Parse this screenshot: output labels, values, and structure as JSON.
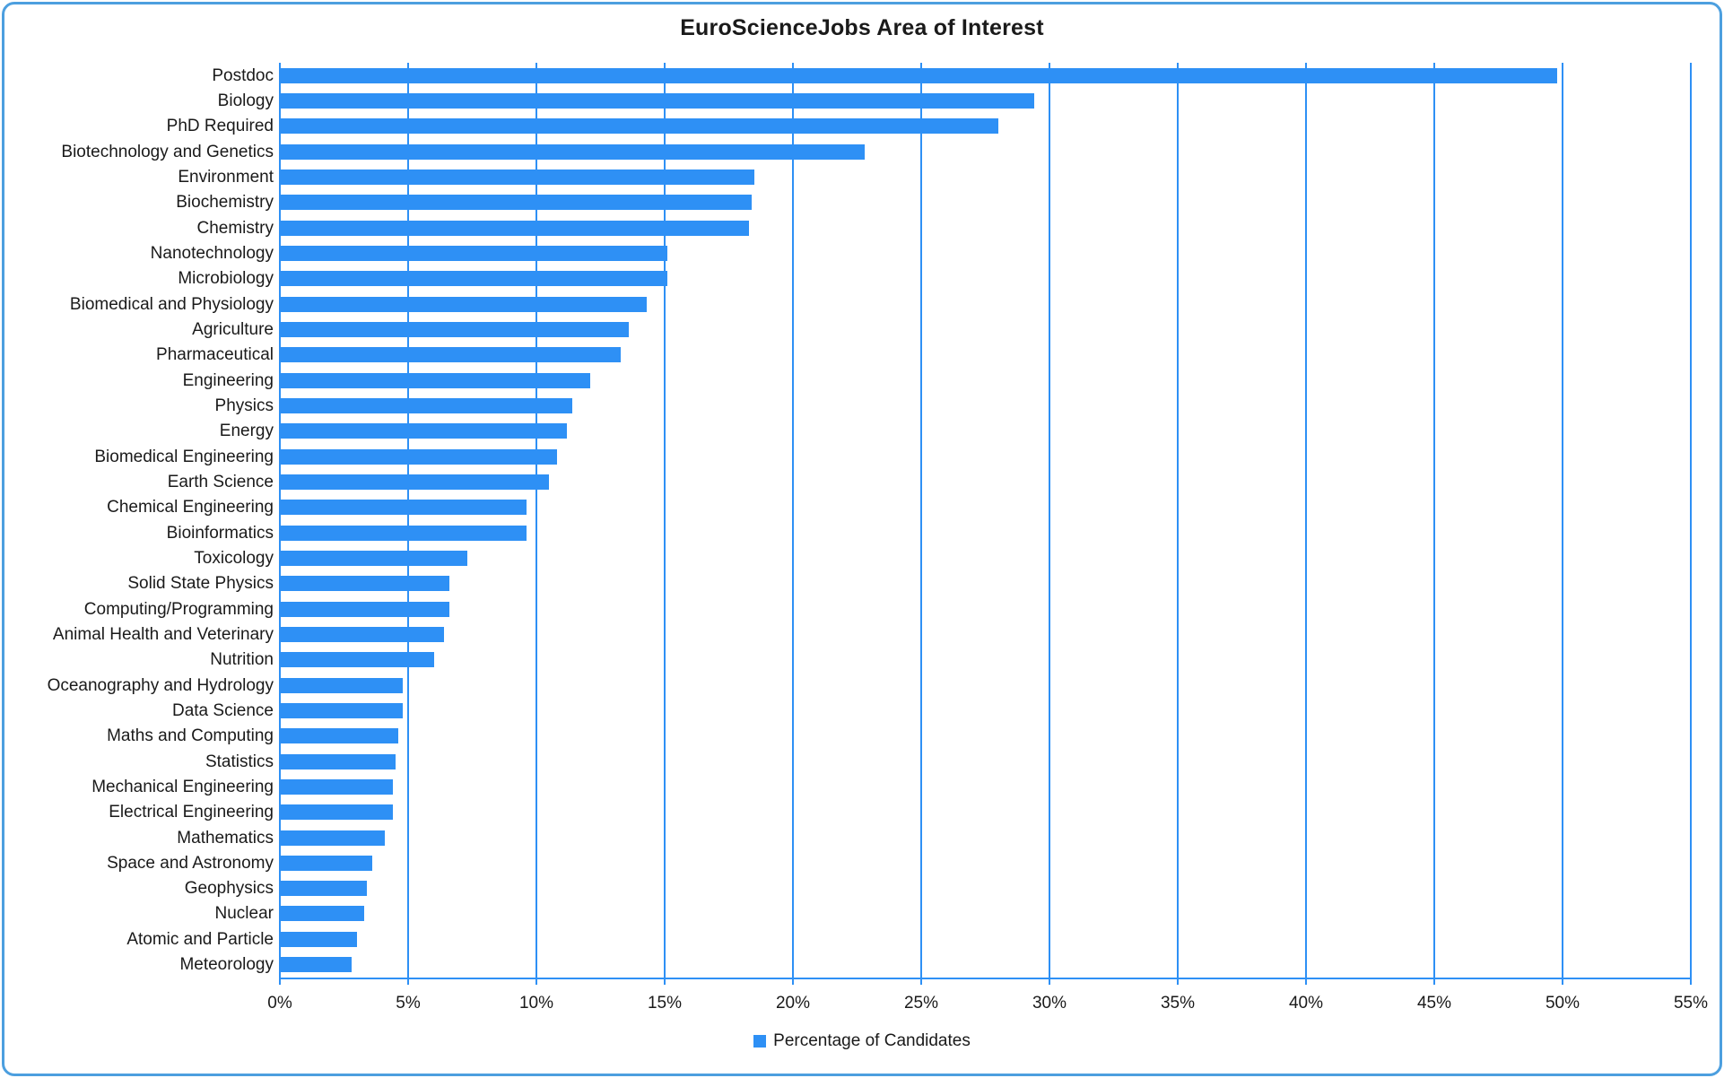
{
  "chart": {
    "title": "EuroScienceJobs Area of Interest",
    "legend_label": "Percentage of Candidates",
    "colors": {
      "bar": "#2E90F5",
      "gridline": "#2E90F5",
      "axis": "#2E90F5",
      "frame_border": "#4C9FDF",
      "text": "#1a1a1a",
      "background": "#ffffff"
    }
  },
  "chart_data": {
    "type": "bar",
    "orientation": "horizontal",
    "title": "EuroScienceJobs Area of Interest",
    "xlabel": "",
    "ylabel": "",
    "unit": "%",
    "xlim": [
      0,
      55
    ],
    "grid": true,
    "legend_entries": [
      "Percentage of Candidates"
    ],
    "legend_position": "bottom",
    "x_tick_labels": [
      "0%",
      "5%",
      "10%",
      "15%",
      "20%",
      "25%",
      "30%",
      "35%",
      "40%",
      "45%",
      "50%",
      "55%"
    ],
    "x_tick_values": [
      0,
      5,
      10,
      15,
      20,
      25,
      30,
      35,
      40,
      45,
      50,
      55
    ],
    "categories": [
      "Postdoc",
      "Biology",
      "PhD Required",
      "Biotechnology and Genetics",
      "Environment",
      "Biochemistry",
      "Chemistry",
      "Nanotechnology",
      "Microbiology",
      "Biomedical and Physiology",
      "Agriculture",
      "Pharmaceutical",
      "Engineering",
      "Physics",
      "Energy",
      "Biomedical Engineering",
      "Earth Science",
      "Chemical Engineering",
      "Bioinformatics",
      "Toxicology",
      "Solid State Physics",
      "Computing/Programming",
      "Animal Health and Veterinary",
      "Nutrition",
      "Oceanography and Hydrology",
      "Data Science",
      "Maths and Computing",
      "Statistics",
      "Mechanical Engineering",
      "Electrical Engineering",
      "Mathematics",
      "Space and Astronomy",
      "Geophysics",
      "Nuclear",
      "Atomic and Particle",
      "Meteorology"
    ],
    "values": [
      49.8,
      29.4,
      28.0,
      22.8,
      18.5,
      18.4,
      18.3,
      15.1,
      15.1,
      14.3,
      13.6,
      13.3,
      12.1,
      11.4,
      11.2,
      10.8,
      10.5,
      9.6,
      9.6,
      7.3,
      6.6,
      6.6,
      6.4,
      6.0,
      4.8,
      4.8,
      4.6,
      4.5,
      4.4,
      4.4,
      4.1,
      3.6,
      3.4,
      3.3,
      3.0,
      2.8
    ]
  }
}
